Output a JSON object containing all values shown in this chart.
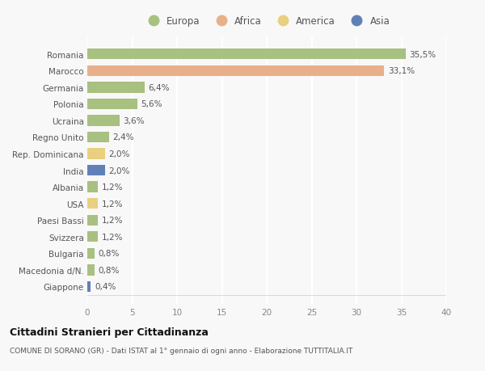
{
  "categories": [
    "Romania",
    "Marocco",
    "Germania",
    "Polonia",
    "Ucraina",
    "Regno Unito",
    "Rep. Dominicana",
    "India",
    "Albania",
    "USA",
    "Paesi Bassi",
    "Svizzera",
    "Bulgaria",
    "Macedonia d/N.",
    "Giappone"
  ],
  "values": [
    35.5,
    33.1,
    6.4,
    5.6,
    3.6,
    2.4,
    2.0,
    2.0,
    1.2,
    1.2,
    1.2,
    1.2,
    0.8,
    0.8,
    0.4
  ],
  "labels": [
    "35,5%",
    "33,1%",
    "6,4%",
    "5,6%",
    "3,6%",
    "2,4%",
    "2,0%",
    "2,0%",
    "1,2%",
    "1,2%",
    "1,2%",
    "1,2%",
    "0,8%",
    "0,8%",
    "0,4%"
  ],
  "continents": [
    "Europa",
    "Africa",
    "Europa",
    "Europa",
    "Europa",
    "Europa",
    "America",
    "Asia",
    "Europa",
    "America",
    "Europa",
    "Europa",
    "Europa",
    "Europa",
    "Asia"
  ],
  "colors": {
    "Europa": "#a8c080",
    "Africa": "#e8b08a",
    "America": "#e8d080",
    "Asia": "#6080b8"
  },
  "legend_order": [
    "Europa",
    "Africa",
    "America",
    "Asia"
  ],
  "title": "Cittadini Stranieri per Cittadinanza",
  "subtitle": "COMUNE DI SORANO (GR) - Dati ISTAT al 1° gennaio di ogni anno - Elaborazione TUTTITALIA.IT",
  "xlim": [
    0,
    40
  ],
  "xticks": [
    0,
    5,
    10,
    15,
    20,
    25,
    30,
    35,
    40
  ],
  "bg_color": "#f8f8f8",
  "grid_color": "#ffffff",
  "bar_height": 0.65
}
